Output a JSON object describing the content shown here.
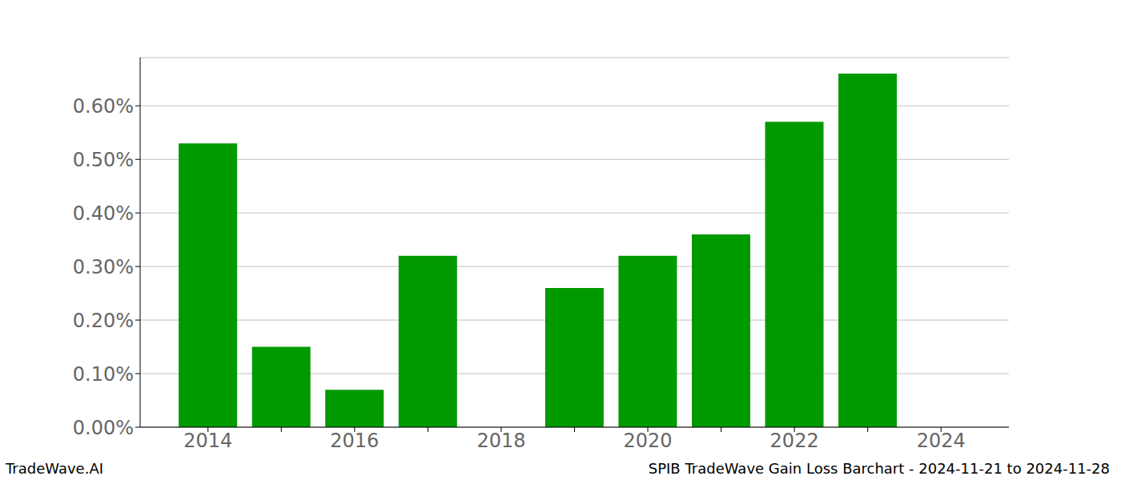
{
  "chart_data": {
    "type": "bar",
    "annotations": [
      "TradeWave.AI",
      "SPIB TradeWave Gain Loss Barchart - 2024-11-21 to 2024-11-28"
    ],
    "categories": [
      "2014",
      null,
      "2016",
      null,
      "2018",
      null,
      "2020",
      null,
      "2022",
      null,
      "2024"
    ],
    "values": [
      0.53,
      0.15,
      0.07,
      0.32,
      0,
      0.26,
      0.32,
      0.36,
      0.57,
      0.66,
      null
    ],
    "color": "#009900",
    "ylim": [
      0,
      0.69
    ],
    "yticks": [
      {
        "value": 0,
        "label": "0.00%"
      },
      {
        "value": 0.1,
        "label": "0.10%"
      },
      {
        "value": 0.2,
        "label": "0.20%"
      },
      {
        "value": 0.3,
        "label": "0.30%"
      },
      {
        "value": 0.4,
        "label": "0.40%"
      },
      {
        "value": 0.5,
        "label": "0.50%"
      },
      {
        "value": 0.6,
        "label": "0.60%"
      }
    ],
    "grid": true
  }
}
